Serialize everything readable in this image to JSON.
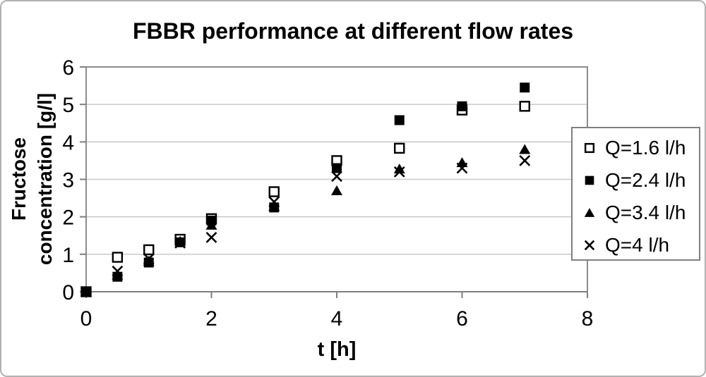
{
  "chart_data": {
    "type": "scatter",
    "title": "FBBR performance at different flow rates",
    "xlabel": "t [h]",
    "ylabel": "Fructose concentration [g/l]",
    "ylabel_lines": [
      "Fructose",
      "concentration [g/l]"
    ],
    "xlim": [
      0,
      8
    ],
    "ylim": [
      0,
      6
    ],
    "xticks": [
      0,
      2,
      4,
      6,
      8
    ],
    "yticks": [
      0,
      1,
      2,
      3,
      4,
      5,
      6
    ],
    "grid": "horizontal",
    "legend_position": "right",
    "x": [
      0,
      0.5,
      1,
      1.5,
      2,
      3,
      4,
      5,
      6,
      7
    ],
    "series": [
      {
        "name": "Q=1.6 l/h",
        "marker": "open-square",
        "values": [
          0,
          0.92,
          1.12,
          1.4,
          1.95,
          2.67,
          3.5,
          3.83,
          4.85,
          4.95
        ]
      },
      {
        "name": "Q=2.4 l/h",
        "marker": "filled-square",
        "values": [
          0,
          0.4,
          0.78,
          1.32,
          1.9,
          2.25,
          3.3,
          4.58,
          4.95,
          5.45
        ]
      },
      {
        "name": "Q=3.4 l/h",
        "marker": "filled-triangle",
        "values": [
          0,
          0.45,
          0.82,
          1.35,
          1.78,
          2.28,
          2.7,
          3.28,
          3.45,
          3.8
        ]
      },
      {
        "name": "Q=4 l/h",
        "marker": "x-cross",
        "values": [
          0,
          0.55,
          0.88,
          1.3,
          1.45,
          2.4,
          3.08,
          3.2,
          3.3,
          3.5
        ]
      }
    ],
    "colors": {
      "marker": "#000000",
      "grid": "#c8c8c8",
      "axis": "#8c8c8c",
      "background": "#ffffff",
      "legend_border": "#7f7f7f"
    }
  }
}
